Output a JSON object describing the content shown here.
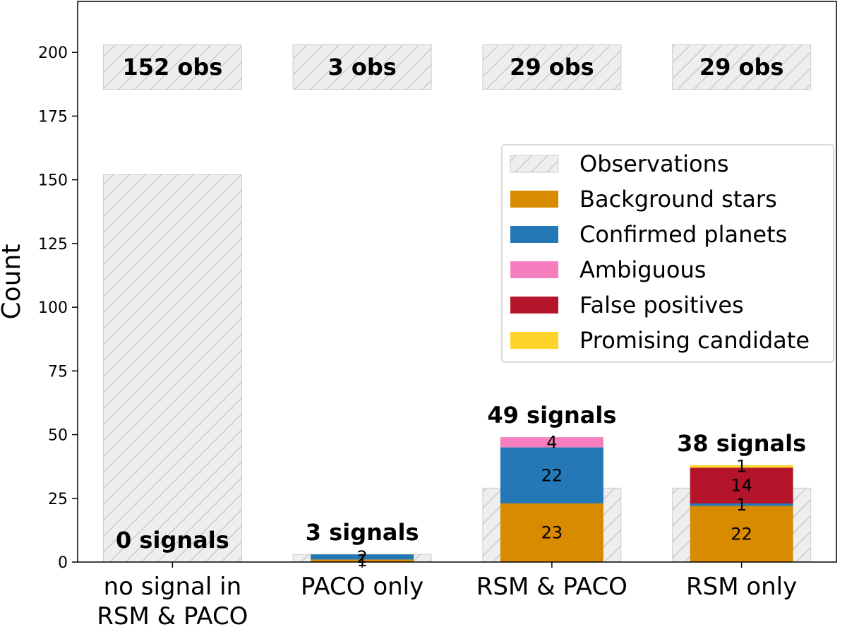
{
  "chart_data": {
    "type": "bar",
    "ylabel": "Count",
    "ylim": [
      0,
      220
    ],
    "yticks": [
      0,
      25,
      50,
      75,
      100,
      125,
      150,
      175,
      200
    ],
    "categories": [
      "no signal in\nRSM & PACO",
      "PACO only",
      "RSM & PACO",
      "RSM only"
    ],
    "observations": [
      152,
      3,
      29,
      29
    ],
    "obs_labels": [
      "152 obs",
      "3 obs",
      "29 obs",
      "29 obs"
    ],
    "signal_labels": [
      "0 signals",
      "3 signals",
      "49 signals",
      "38 signals"
    ],
    "series": [
      {
        "name": "Background stars",
        "color": "#d98b00",
        "values": [
          0,
          1,
          23,
          22
        ],
        "labels": [
          "",
          "1",
          "23",
          "22"
        ]
      },
      {
        "name": "Confirmed planets",
        "color": "#2378b5",
        "values": [
          0,
          2,
          22,
          1
        ],
        "labels": [
          "",
          "2",
          "22",
          "1"
        ]
      },
      {
        "name": "Ambiguous",
        "color": "#f57fbe",
        "values": [
          0,
          0,
          4,
          0
        ],
        "labels": [
          "",
          "",
          "4",
          ""
        ]
      },
      {
        "name": "False positives",
        "color": "#b5152b",
        "values": [
          0,
          0,
          0,
          14
        ],
        "labels": [
          "",
          "",
          "",
          "14"
        ]
      },
      {
        "name": "Promising candidate",
        "color": "#ffd42a",
        "values": [
          0,
          0,
          0,
          1
        ],
        "labels": [
          "",
          "",
          "",
          "1"
        ]
      }
    ],
    "legend": {
      "placement": "upper-right",
      "entries": [
        "Observations",
        "Background stars",
        "Confirmed planets",
        "Ambiguous",
        "False positives",
        "Promising candidate"
      ]
    },
    "observations_style": {
      "fill": "#eeeeee",
      "hatch": "#bbbbbb"
    },
    "grid": false
  }
}
